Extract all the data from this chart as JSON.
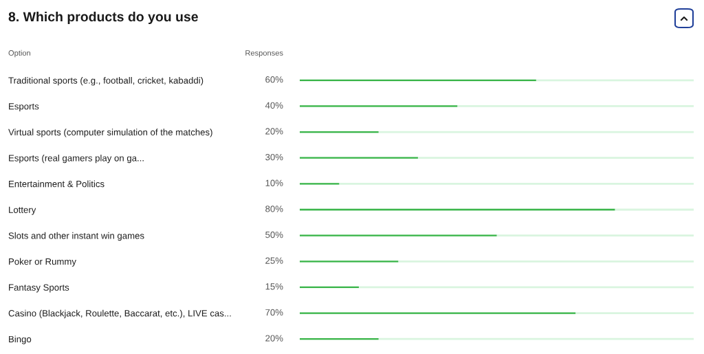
{
  "chart_data": {
    "type": "bar",
    "orientation": "horizontal",
    "title": "8. Which products do you use",
    "categories": [
      "Traditional sports (e.g., football, cricket, kabaddi)",
      "Esports",
      "Virtual sports (computer simulation of the matches)",
      "Esports (real gamers play on ga...",
      "Entertainment & Politics",
      "Lottery",
      "Slots and other instant win games",
      "Poker or Rummy",
      "Fantasy Sports",
      "Casino (Blackjack, Roulette, Baccarat, etc.), LIVE cas...",
      "Bingo"
    ],
    "values": [
      60,
      40,
      20,
      30,
      10,
      80,
      50,
      25,
      15,
      70,
      20
    ],
    "value_labels": [
      "60%",
      "40%",
      "20%",
      "30%",
      "10%",
      "80%",
      "50%",
      "25%",
      "15%",
      "70%",
      "20%"
    ],
    "color": "#3bb54a",
    "xlim": [
      0,
      100
    ],
    "tick_labels": "y",
    "grid": "y",
    "legend": false,
    "annotations": [
      "Option",
      "Responses"
    ]
  }
}
